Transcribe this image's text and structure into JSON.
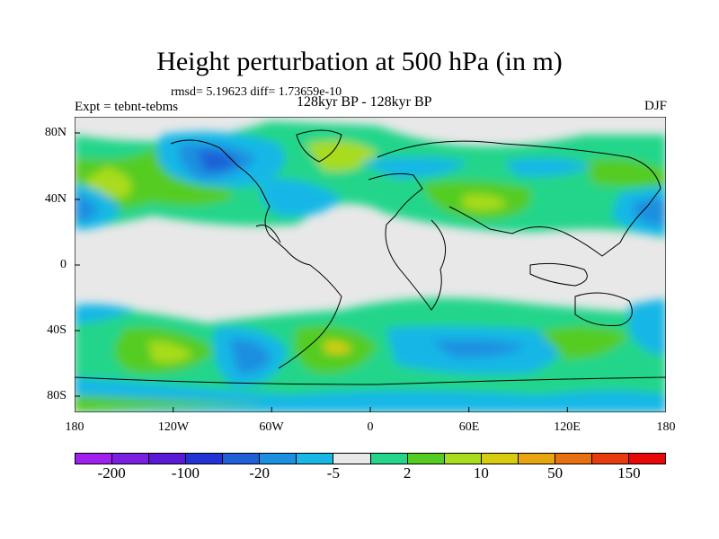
{
  "title": "Height perturbation at 500 hPa (in m)",
  "stats": "rmsd= 5.19623 diff= 1.73659e-10",
  "experiment": "Expt = tebnt-tebms",
  "period": "128kyr BP - 128kyr BP",
  "season": "DJF",
  "lat_labels": [
    "80N",
    "40N",
    "0",
    "40S",
    "80S"
  ],
  "lon_labels": [
    "180",
    "120W",
    "60W",
    "0",
    "60E",
    "120E",
    "180"
  ],
  "colorbar": {
    "colors": [
      "#a020f0",
      "#7b1fe0",
      "#5a19d6",
      "#2233d6",
      "#1f60d8",
      "#1b8fe0",
      "#19b7e6",
      "#e8e8e8",
      "#24d58a",
      "#55cc22",
      "#a8dc1c",
      "#d8cc10",
      "#e8a510",
      "#e87010",
      "#e83c10",
      "#e80808"
    ],
    "labels": [
      "-200",
      "-100",
      "-20",
      "-5",
      "2",
      "10",
      "50",
      "150"
    ]
  },
  "colors": {
    "neutral": "#e8e8e8",
    "coast": "#000000"
  }
}
